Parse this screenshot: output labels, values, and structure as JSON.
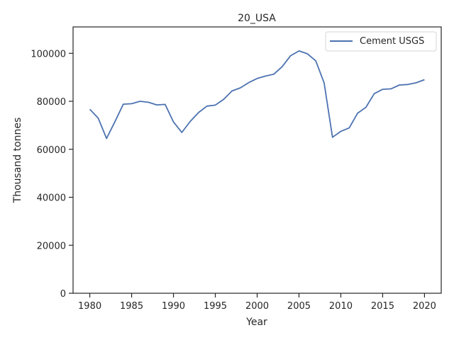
{
  "chart_data": {
    "type": "line",
    "title": "20_USA",
    "xlabel": "Year",
    "ylabel": "Thousand tonnes",
    "xlim": [
      1978,
      2022
    ],
    "ylim": [
      0,
      111000
    ],
    "xticks": [
      1980,
      1985,
      1990,
      1995,
      2000,
      2005,
      2010,
      2015,
      2020
    ],
    "yticks": [
      0,
      20000,
      40000,
      60000,
      80000,
      100000
    ],
    "grid": false,
    "legend_position": "upper right",
    "x": [
      1980,
      1981,
      1982,
      1983,
      1984,
      1985,
      1986,
      1987,
      1988,
      1989,
      1990,
      1991,
      1992,
      1993,
      1994,
      1995,
      1996,
      1997,
      1998,
      1999,
      2000,
      2001,
      2002,
      2003,
      2004,
      2005,
      2006,
      2007,
      2008,
      2009,
      2010,
      2011,
      2012,
      2013,
      2014,
      2015,
      2016,
      2017,
      2018,
      2019,
      2020
    ],
    "series": [
      {
        "name": "Cement USGS",
        "color": "#4c72b0",
        "values": [
          76700,
          73000,
          64500,
          71500,
          78800,
          79000,
          80000,
          79600,
          78500,
          78700,
          71400,
          67000,
          71600,
          75300,
          78000,
          78400,
          80800,
          84300,
          85600,
          87800,
          89500,
          90500,
          91300,
          94500,
          99000,
          101000,
          99800,
          96900,
          87700,
          65000,
          67500,
          68900,
          75000,
          77500,
          83200,
          85000,
          85200,
          86800,
          87000,
          87700,
          89000
        ]
      }
    ]
  }
}
